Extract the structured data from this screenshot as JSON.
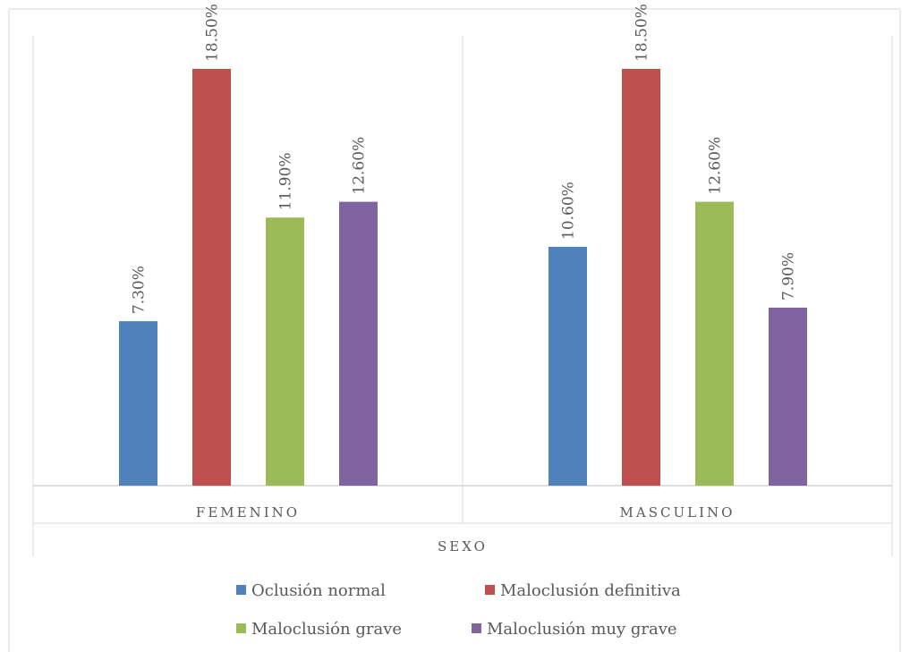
{
  "chart_data": {
    "type": "bar",
    "categories": [
      "FEMENINO",
      "MASCULINO"
    ],
    "axis_title": "SEXO",
    "series": [
      {
        "name": "Oclusión normal",
        "color": "#4F81BD",
        "values": [
          7.3,
          10.6
        ],
        "labels": [
          "7.30%",
          "10.60%"
        ]
      },
      {
        "name": "Maloclusión definitiva",
        "color": "#C0504D",
        "values": [
          18.5,
          18.5
        ],
        "labels": [
          "18.50%",
          "18.50%"
        ]
      },
      {
        "name": "Maloclusión grave",
        "color": "#9BBB59",
        "values": [
          11.9,
          12.6
        ],
        "labels": [
          "11.90%",
          "12.60%"
        ]
      },
      {
        "name": "Maloclusión muy grave",
        "color": "#8064A2",
        "values": [
          12.6,
          7.9
        ],
        "labels": [
          "12.60%",
          "7.90%"
        ]
      }
    ],
    "ylim": [
      0,
      19
    ],
    "grid": false,
    "legend_position": "bottom"
  }
}
